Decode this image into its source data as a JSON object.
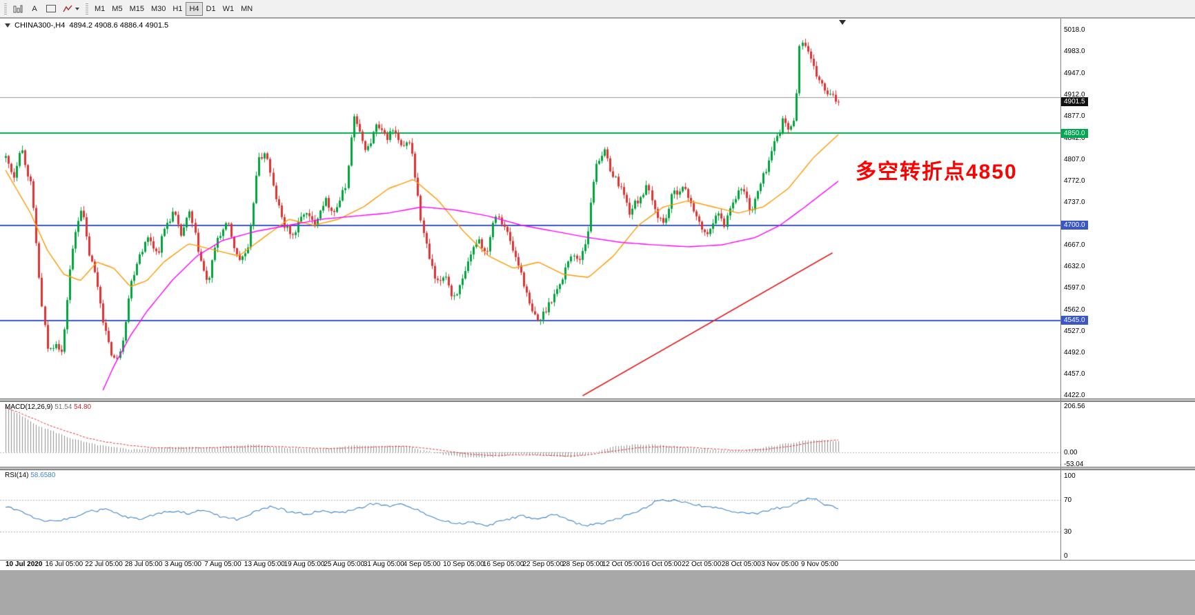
{
  "toolbar": {
    "text_tool_label": "A",
    "timeframes": [
      "M1",
      "M5",
      "M15",
      "M30",
      "H1",
      "H4",
      "D1",
      "W1",
      "MN"
    ],
    "active_timeframe": "H4"
  },
  "chart": {
    "symbol_header": "CHINA300-,H4",
    "ohlc_text": "4894.2 4908.6 4886.4 4901.5",
    "annotation": {
      "text": "多空转折点4850",
      "color": "#ff0000"
    },
    "price_axis": {
      "ticks": [
        "5018.0",
        "4983.0",
        "4947.0",
        "4912.0",
        "4877.0",
        "4842.0",
        "4807.0",
        "4772.0",
        "4737.0",
        "4702.0",
        "4667.0",
        "4632.0",
        "4597.0",
        "4562.0",
        "4527.0",
        "4492.0",
        "4457.0",
        "4422.0"
      ],
      "badges": [
        {
          "label": "4901.5",
          "price": 4901.5,
          "bg": "#111111"
        },
        {
          "label": "4850.0",
          "price": 4850.0,
          "bg": "#00a651"
        },
        {
          "label": "4700.0",
          "price": 4700.0,
          "bg": "#3a57c8"
        },
        {
          "label": "4545.0",
          "price": 4545.0,
          "bg": "#3a57c8"
        }
      ]
    },
    "time_axis": [
      "10 Jul 2020",
      "16 Jul 05:00",
      "22 Jul 05:00",
      "28 Jul 05:00",
      "3 Aug 05:00",
      "7 Aug 05:00",
      "13 Aug 05:00",
      "19 Aug 05:00",
      "25 Aug 05:00",
      "31 Aug 05:00",
      "4 Sep 05:00",
      "10 Sep 05:00",
      "16 Sep 05:00",
      "22 Sep 05:00",
      "28 Sep 05:00",
      "12 Oct 05:00",
      "16 Oct 05:00",
      "22 Oct 05:00",
      "28 Oct 05:00",
      "3 Nov 05:00",
      "9 Nov 05:00"
    ]
  },
  "chart_data": {
    "type": "candlestick",
    "symbol": "CHINA300-",
    "timeframe": "H4",
    "ohlc_current": {
      "open": 4894.2,
      "high": 4908.6,
      "low": 4886.4,
      "close": 4901.5
    },
    "last_price": 4901.5,
    "price_range": [
      4422.0,
      5018.0
    ],
    "hlines": [
      {
        "price": 4908.6,
        "color": "#999999",
        "width": 1
      },
      {
        "price": 4850.0,
        "color": "#00a651",
        "width": 2
      },
      {
        "price": 4700.0,
        "color": "#3a57c8",
        "width": 2
      },
      {
        "price": 4545.0,
        "color": "#3a57c8",
        "width": 2
      }
    ],
    "trendline_red": [
      [
        0.693,
        4422
      ],
      [
        0.993,
        4655
      ]
    ],
    "close_path": [
      [
        0,
        4810
      ],
      [
        0.01,
        4780
      ],
      [
        0.018,
        4832
      ],
      [
        0.031,
        4762
      ],
      [
        0.043,
        4570
      ],
      [
        0.051,
        4492
      ],
      [
        0.06,
        4512
      ],
      [
        0.068,
        4490
      ],
      [
        0.076,
        4620
      ],
      [
        0.085,
        4702
      ],
      [
        0.091,
        4732
      ],
      [
        0.099,
        4660
      ],
      [
        0.109,
        4612
      ],
      [
        0.118,
        4540
      ],
      [
        0.124,
        4502
      ],
      [
        0.133,
        4476
      ],
      [
        0.141,
        4520
      ],
      [
        0.149,
        4600
      ],
      [
        0.159,
        4650
      ],
      [
        0.172,
        4682
      ],
      [
        0.182,
        4652
      ],
      [
        0.192,
        4700
      ],
      [
        0.202,
        4722
      ],
      [
        0.21,
        4682
      ],
      [
        0.221,
        4720
      ],
      [
        0.234,
        4642
      ],
      [
        0.242,
        4602
      ],
      [
        0.254,
        4680
      ],
      [
        0.267,
        4702
      ],
      [
        0.279,
        4642
      ],
      [
        0.292,
        4660
      ],
      [
        0.302,
        4800
      ],
      [
        0.312,
        4822
      ],
      [
        0.321,
        4762
      ],
      [
        0.333,
        4702
      ],
      [
        0.345,
        4682
      ],
      [
        0.358,
        4722
      ],
      [
        0.37,
        4702
      ],
      [
        0.383,
        4742
      ],
      [
        0.395,
        4722
      ],
      [
        0.408,
        4762
      ],
      [
        0.418,
        4880
      ],
      [
        0.426,
        4842
      ],
      [
        0.434,
        4822
      ],
      [
        0.445,
        4862
      ],
      [
        0.456,
        4842
      ],
      [
        0.466,
        4856
      ],
      [
        0.476,
        4822
      ],
      [
        0.486,
        4840
      ],
      [
        0.499,
        4702
      ],
      [
        0.509,
        4642
      ],
      [
        0.517,
        4602
      ],
      [
        0.528,
        4622
      ],
      [
        0.536,
        4582
      ],
      [
        0.547,
        4602
      ],
      [
        0.557,
        4642
      ],
      [
        0.567,
        4682
      ],
      [
        0.577,
        4652
      ],
      [
        0.588,
        4722
      ],
      [
        0.598,
        4702
      ],
      [
        0.608,
        4662
      ],
      [
        0.619,
        4622
      ],
      [
        0.63,
        4562
      ],
      [
        0.64,
        4542
      ],
      [
        0.648,
        4562
      ],
      [
        0.656,
        4582
      ],
      [
        0.666,
        4602
      ],
      [
        0.677,
        4652
      ],
      [
        0.688,
        4642
      ],
      [
        0.698,
        4682
      ],
      [
        0.708,
        4800
      ],
      [
        0.718,
        4822
      ],
      [
        0.729,
        4782
      ],
      [
        0.739,
        4762
      ],
      [
        0.749,
        4722
      ],
      [
        0.76,
        4742
      ],
      [
        0.77,
        4762
      ],
      [
        0.78,
        4722
      ],
      [
        0.79,
        4702
      ],
      [
        0.801,
        4752
      ],
      [
        0.812,
        4762
      ],
      [
        0.822,
        4742
      ],
      [
        0.832,
        4702
      ],
      [
        0.843,
        4682
      ],
      [
        0.853,
        4722
      ],
      [
        0.863,
        4702
      ],
      [
        0.873,
        4742
      ],
      [
        0.884,
        4762
      ],
      [
        0.895,
        4722
      ],
      [
        0.905,
        4762
      ],
      [
        0.915,
        4800
      ],
      [
        0.925,
        4842
      ],
      [
        0.934,
        4872
      ],
      [
        0.942,
        4852
      ],
      [
        0.948,
        4882
      ],
      [
        0.953,
        4990
      ],
      [
        0.959,
        5002
      ],
      [
        0.964,
        4976
      ],
      [
        0.971,
        4950
      ],
      [
        0.978,
        4934
      ],
      [
        0.984,
        4916
      ],
      [
        1,
        4901.5
      ]
    ],
    "ma_orange": [
      [
        0,
        4790
      ],
      [
        0.03,
        4720
      ],
      [
        0.05,
        4660
      ],
      [
        0.07,
        4620
      ],
      [
        0.09,
        4610
      ],
      [
        0.11,
        4640
      ],
      [
        0.13,
        4630
      ],
      [
        0.15,
        4600
      ],
      [
        0.17,
        4610
      ],
      [
        0.19,
        4640
      ],
      [
        0.22,
        4670
      ],
      [
        0.25,
        4660
      ],
      [
        0.28,
        4650
      ],
      [
        0.31,
        4680
      ],
      [
        0.34,
        4710
      ],
      [
        0.37,
        4700
      ],
      [
        0.4,
        4710
      ],
      [
        0.43,
        4730
      ],
      [
        0.46,
        4760
      ],
      [
        0.49,
        4775
      ],
      [
        0.52,
        4740
      ],
      [
        0.55,
        4690
      ],
      [
        0.58,
        4650
      ],
      [
        0.61,
        4630
      ],
      [
        0.64,
        4640
      ],
      [
        0.67,
        4620
      ],
      [
        0.7,
        4615
      ],
      [
        0.73,
        4650
      ],
      [
        0.76,
        4700
      ],
      [
        0.79,
        4730
      ],
      [
        0.82,
        4740
      ],
      [
        0.85,
        4730
      ],
      [
        0.88,
        4720
      ],
      [
        0.91,
        4730
      ],
      [
        0.94,
        4760
      ],
      [
        0.97,
        4810
      ],
      [
        1,
        4848
      ]
    ],
    "ma_magenta": [
      [
        0.115,
        4425
      ],
      [
        0.13,
        4470
      ],
      [
        0.15,
        4520
      ],
      [
        0.17,
        4560
      ],
      [
        0.2,
        4610
      ],
      [
        0.23,
        4650
      ],
      [
        0.26,
        4675
      ],
      [
        0.3,
        4690
      ],
      [
        0.34,
        4700
      ],
      [
        0.38,
        4710
      ],
      [
        0.42,
        4715
      ],
      [
        0.46,
        4720
      ],
      [
        0.5,
        4730
      ],
      [
        0.54,
        4725
      ],
      [
        0.58,
        4715
      ],
      [
        0.62,
        4700
      ],
      [
        0.66,
        4690
      ],
      [
        0.7,
        4680
      ],
      [
        0.74,
        4672
      ],
      [
        0.78,
        4668
      ],
      [
        0.82,
        4665
      ],
      [
        0.86,
        4668
      ],
      [
        0.9,
        4680
      ],
      [
        0.93,
        4700
      ],
      [
        0.96,
        4730
      ],
      [
        1,
        4772
      ]
    ],
    "macd": {
      "label": "MACD(12,26,9)",
      "value_main": "51.54",
      "value_signal": "54.80",
      "axis_labels": [
        [
          "206.56",
          206.56
        ],
        [
          "0.00",
          0
        ],
        [
          "-53.04",
          -53.04
        ]
      ],
      "points": [
        [
          0,
          206.5,
          200
        ],
        [
          0.02,
          160,
          172
        ],
        [
          0.04,
          118,
          140
        ],
        [
          0.06,
          88,
          110
        ],
        [
          0.08,
          60,
          86
        ],
        [
          0.1,
          40,
          62
        ],
        [
          0.12,
          26,
          46
        ],
        [
          0.15,
          12,
          30
        ],
        [
          0.18,
          18,
          20
        ],
        [
          0.21,
          25,
          18
        ],
        [
          0.24,
          20,
          20
        ],
        [
          0.27,
          28,
          22
        ],
        [
          0.3,
          35,
          26
        ],
        [
          0.33,
          22,
          25
        ],
        [
          0.36,
          15,
          20
        ],
        [
          0.39,
          18,
          16
        ],
        [
          0.42,
          30,
          20
        ],
        [
          0.45,
          28,
          24
        ],
        [
          0.48,
          28,
          26
        ],
        [
          0.5,
          10,
          20
        ],
        [
          0.53,
          -15,
          5
        ],
        [
          0.56,
          -25,
          -10
        ],
        [
          0.59,
          -20,
          -15
        ],
        [
          0.62,
          -10,
          -12
        ],
        [
          0.65,
          -18,
          -14
        ],
        [
          0.68,
          -22,
          -18
        ],
        [
          0.7,
          -10,
          -12
        ],
        [
          0.73,
          25,
          5
        ],
        [
          0.76,
          35,
          20
        ],
        [
          0.79,
          30,
          25
        ],
        [
          0.82,
          20,
          22
        ],
        [
          0.85,
          10,
          15
        ],
        [
          0.88,
          5,
          8
        ],
        [
          0.91,
          20,
          12
        ],
        [
          0.94,
          40,
          25
        ],
        [
          0.97,
          55,
          45
        ],
        [
          1,
          51.54,
          54.8
        ]
      ]
    },
    "rsi": {
      "label": "RSI(14)",
      "value": "58.6580",
      "levels": [
        70,
        30
      ],
      "axis_labels": [
        [
          "100",
          100
        ],
        [
          "70",
          70
        ],
        [
          "30",
          30
        ],
        [
          "0",
          0
        ]
      ],
      "points": [
        [
          0,
          62
        ],
        [
          0.02,
          55
        ],
        [
          0.04,
          45
        ],
        [
          0.06,
          42
        ],
        [
          0.08,
          48
        ],
        [
          0.1,
          55
        ],
        [
          0.12,
          58
        ],
        [
          0.14,
          50
        ],
        [
          0.16,
          45
        ],
        [
          0.18,
          52
        ],
        [
          0.2,
          56
        ],
        [
          0.22,
          53
        ],
        [
          0.24,
          57
        ],
        [
          0.26,
          48
        ],
        [
          0.28,
          45
        ],
        [
          0.3,
          55
        ],
        [
          0.32,
          62
        ],
        [
          0.34,
          55
        ],
        [
          0.36,
          52
        ],
        [
          0.38,
          56
        ],
        [
          0.4,
          53
        ],
        [
          0.42,
          58
        ],
        [
          0.44,
          65
        ],
        [
          0.46,
          62
        ],
        [
          0.48,
          64
        ],
        [
          0.5,
          55
        ],
        [
          0.52,
          45
        ],
        [
          0.54,
          40
        ],
        [
          0.56,
          42
        ],
        [
          0.58,
          38
        ],
        [
          0.6,
          45
        ],
        [
          0.62,
          50
        ],
        [
          0.64,
          45
        ],
        [
          0.66,
          52
        ],
        [
          0.68,
          42
        ],
        [
          0.7,
          38
        ],
        [
          0.72,
          42
        ],
        [
          0.74,
          48
        ],
        [
          0.76,
          55
        ],
        [
          0.78,
          68
        ],
        [
          0.8,
          70
        ],
        [
          0.82,
          65
        ],
        [
          0.84,
          62
        ],
        [
          0.86,
          58
        ],
        [
          0.88,
          55
        ],
        [
          0.9,
          52
        ],
        [
          0.92,
          58
        ],
        [
          0.94,
          62
        ],
        [
          0.96,
          70
        ],
        [
          0.97,
          72
        ],
        [
          0.98,
          66
        ],
        [
          1,
          58.66
        ]
      ]
    }
  },
  "colors": {
    "up": "#00a23c",
    "down": "#e03232",
    "ma_fast": "#ff9900",
    "ma_slow": "#ff00ff",
    "trend": "#e02020",
    "rsi_line": "#3e86c8",
    "macd_hist": "#8f8f8f",
    "macd_signal": "#e03030",
    "hline_blue": "#3a57c8",
    "hline_green": "#00a651"
  }
}
